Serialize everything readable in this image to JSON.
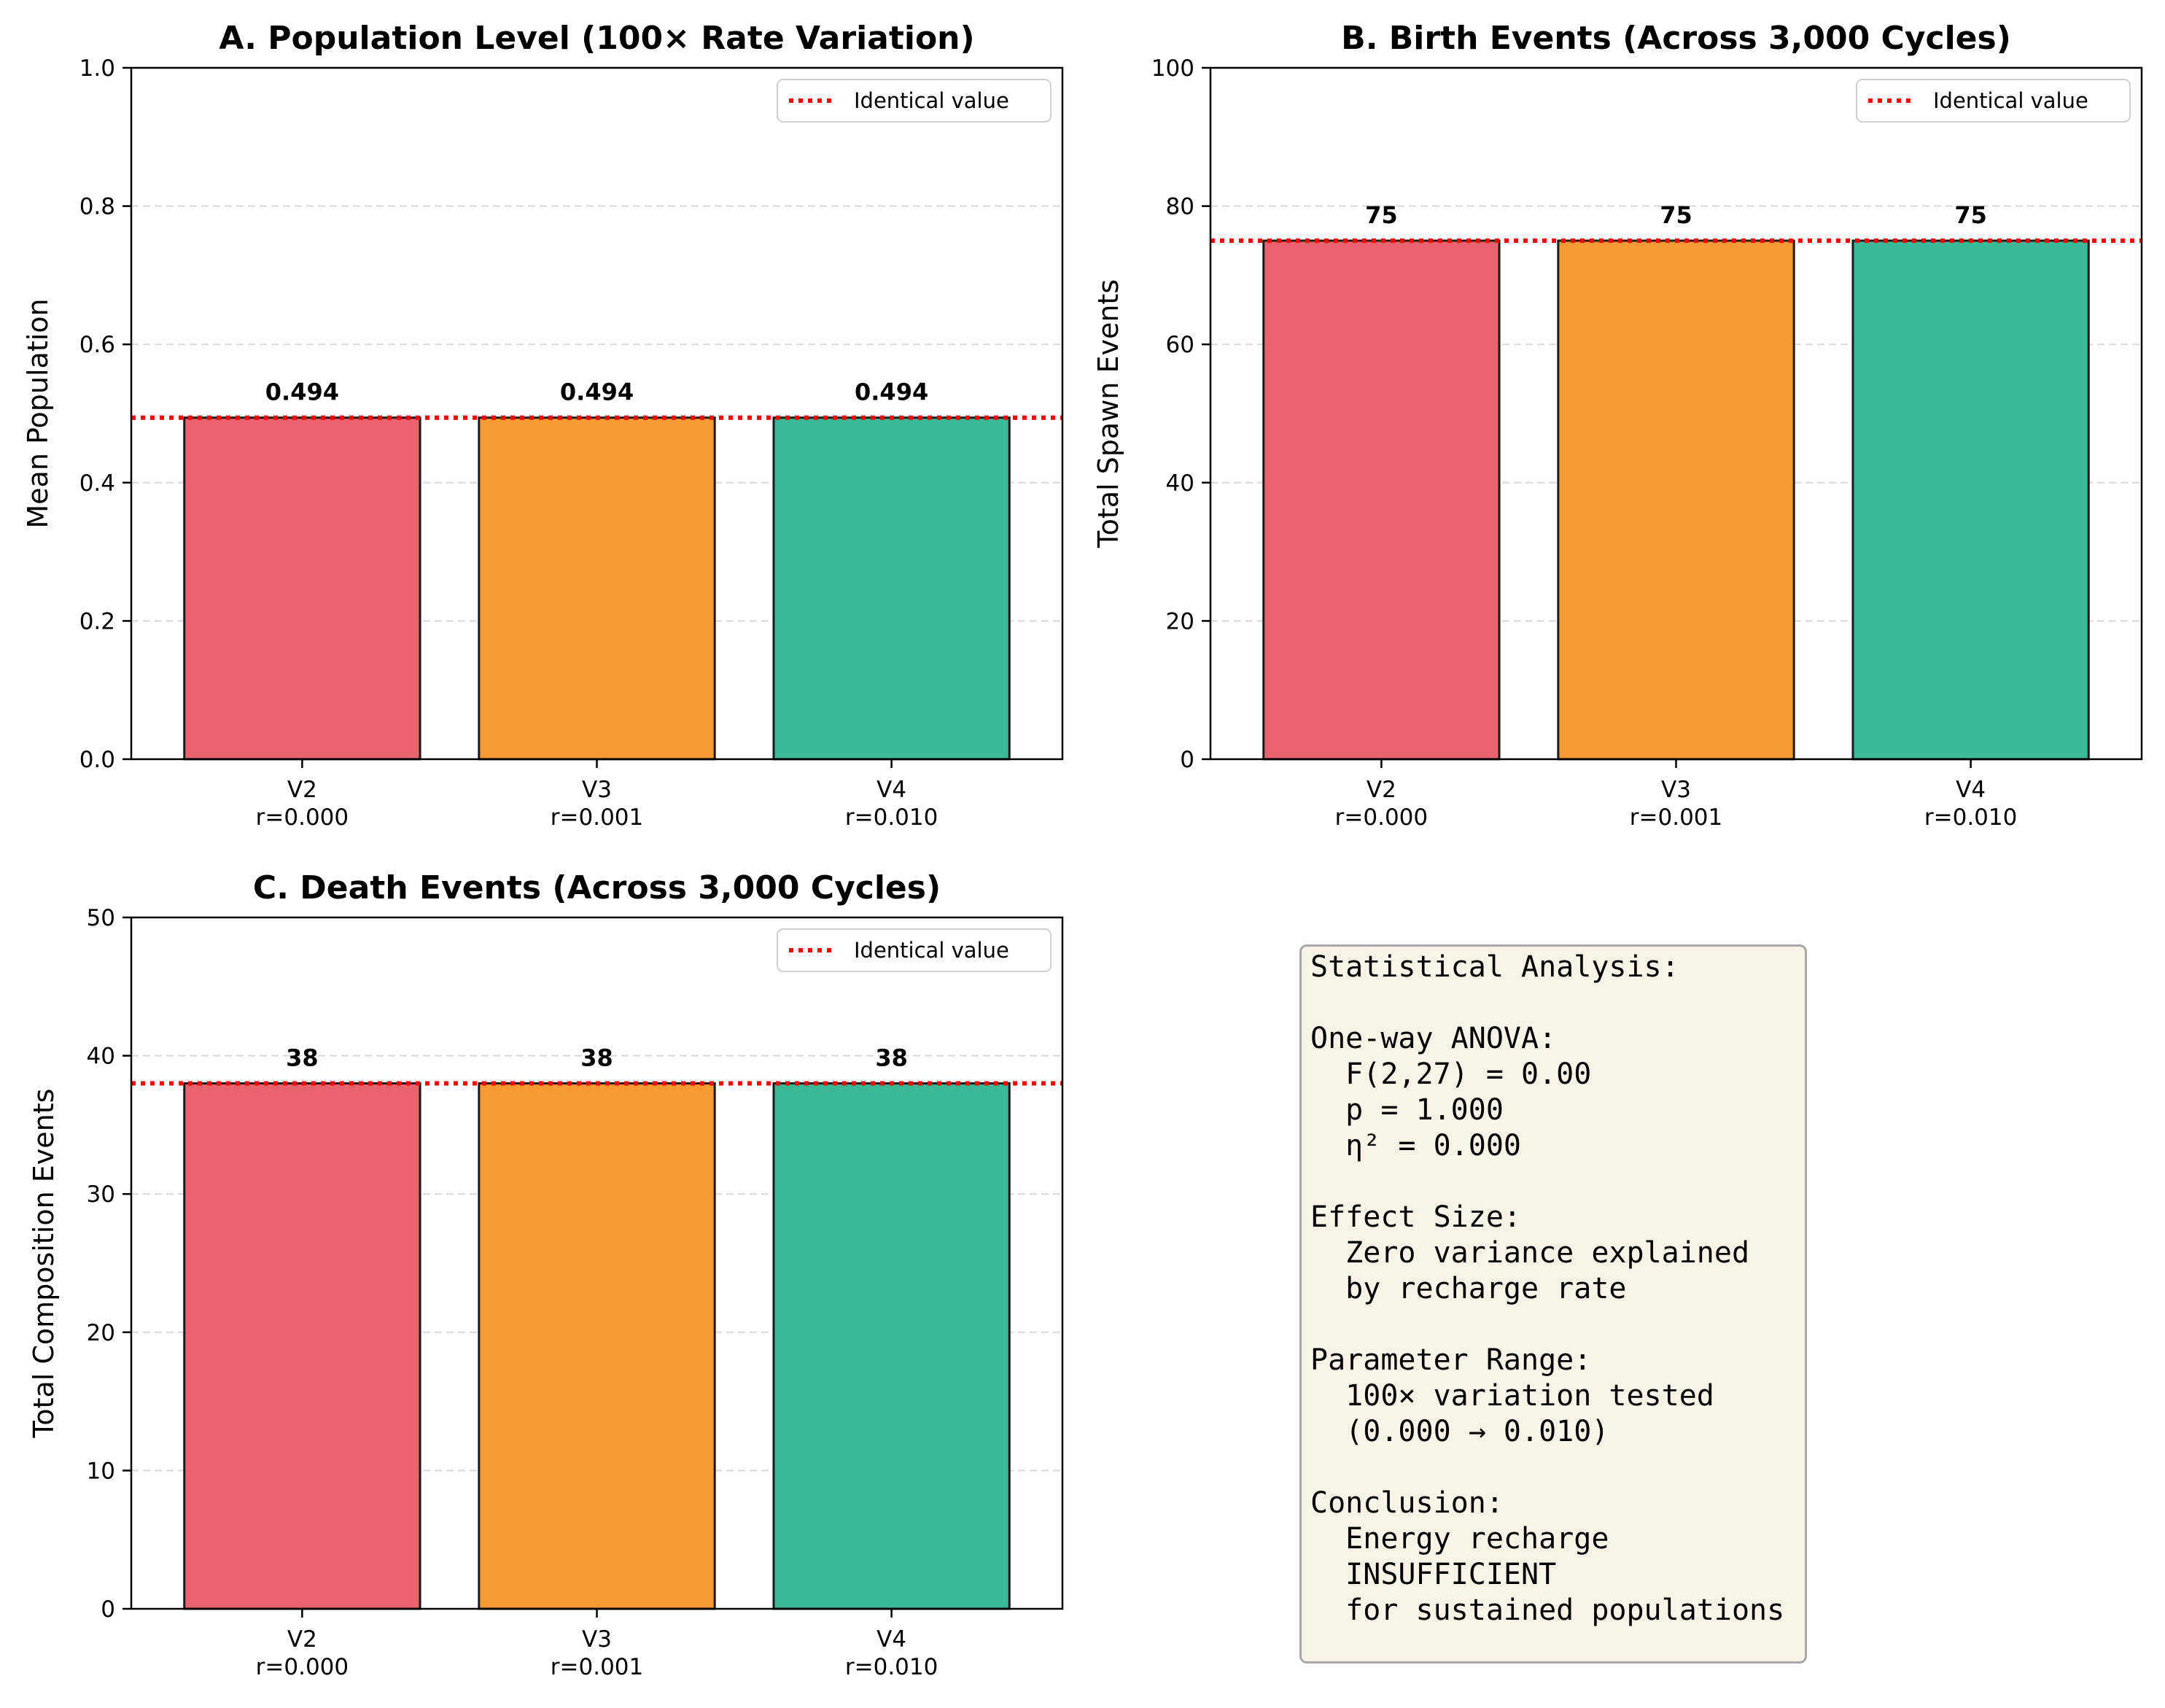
{
  "chart_data": [
    {
      "type": "bar",
      "title": "A. Population Level (100× Rate Variation)",
      "ylabel": "Mean Population",
      "categories": [
        "V2\nr=0.000",
        "V3\nr=0.001",
        "V4\nr=0.010"
      ],
      "values": [
        0.494,
        0.494,
        0.494
      ],
      "value_labels": [
        "0.494",
        "0.494",
        "0.494"
      ],
      "colors": [
        "#e8636d",
        "#f79a34",
        "#3ab897"
      ],
      "ylim": [
        0,
        1.0
      ],
      "yticks": [
        0,
        0.2,
        0.4,
        0.6,
        0.8,
        1.0
      ],
      "ytick_labels": [
        "0.0",
        "0.2",
        "0.4",
        "0.6",
        "0.8",
        "1.0"
      ],
      "reference_line": {
        "value": 0.494,
        "label": "Identical value",
        "color": "#ff0000"
      },
      "legend": "top-right",
      "grid": "y-dashed"
    },
    {
      "type": "bar",
      "title": "B. Birth Events (Across 3,000 Cycles)",
      "ylabel": "Total Spawn Events",
      "categories": [
        "V2\nr=0.000",
        "V3\nr=0.001",
        "V4\nr=0.010"
      ],
      "values": [
        75,
        75,
        75
      ],
      "value_labels": [
        "75",
        "75",
        "75"
      ],
      "colors": [
        "#e8636d",
        "#f79a34",
        "#3ab897"
      ],
      "ylim": [
        0,
        100
      ],
      "yticks": [
        0,
        20,
        40,
        60,
        80,
        100
      ],
      "ytick_labels": [
        "0",
        "20",
        "40",
        "60",
        "80",
        "100"
      ],
      "reference_line": {
        "value": 75,
        "label": "Identical value",
        "color": "#ff0000"
      },
      "legend": "top-right",
      "grid": "y-dashed"
    },
    {
      "type": "bar",
      "title": "C. Death Events (Across 3,000 Cycles)",
      "ylabel": "Total Composition Events",
      "categories": [
        "V2\nr=0.000",
        "V3\nr=0.001",
        "V4\nr=0.010"
      ],
      "values": [
        38,
        38,
        38
      ],
      "value_labels": [
        "38",
        "38",
        "38"
      ],
      "colors": [
        "#e8636d",
        "#f79a34",
        "#3ab897"
      ],
      "ylim": [
        0,
        50
      ],
      "yticks": [
        0,
        10,
        20,
        30,
        40,
        50
      ],
      "ytick_labels": [
        "0",
        "10",
        "20",
        "30",
        "40",
        "50"
      ],
      "reference_line": {
        "value": 38,
        "label": "Identical value",
        "color": "#ff0000"
      },
      "legend": "top-right",
      "grid": "y-dashed"
    }
  ],
  "stats_box": {
    "lines": [
      "Statistical Analysis:",
      "",
      "One-way ANOVA:",
      "  F(2,27) = 0.00",
      "  p = 1.000",
      "  η² = 0.000",
      "",
      "Effect Size:",
      "  Zero variance explained",
      "  by recharge rate",
      "",
      "Parameter Range:",
      "  100× variation tested",
      "  (0.000 → 0.010)",
      "",
      "Conclusion:",
      "  Energy recharge",
      "  INSUFFICIENT",
      "  for sustained populations"
    ]
  }
}
